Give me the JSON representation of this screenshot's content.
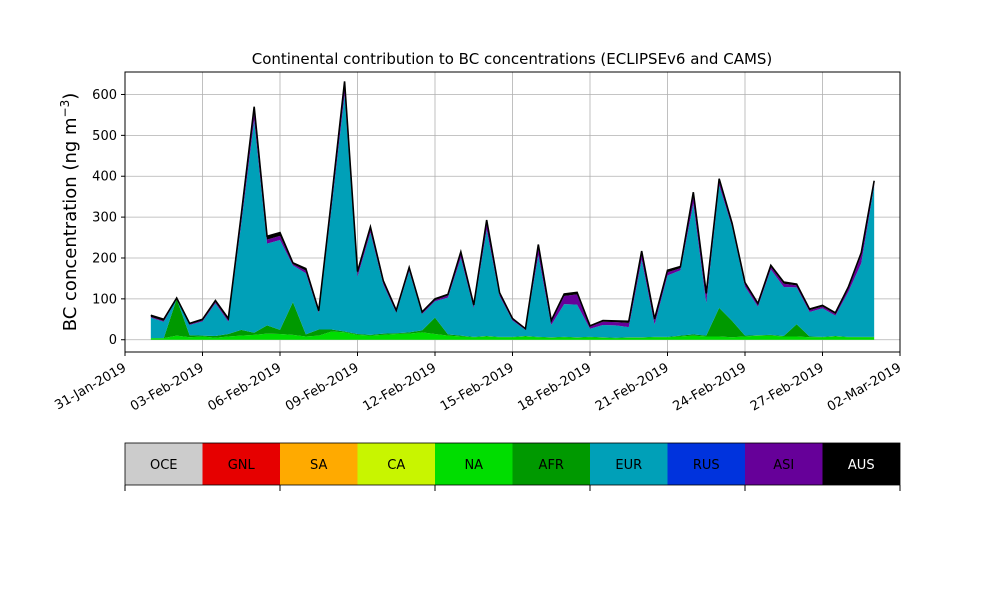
{
  "chart_data": {
    "type": "area",
    "title": "Continental contribution to BC concentrations (ECLIPSEv6 and CAMS)",
    "ylabel": "BC concentration (ng m",
    "ylabel_superscript": "−3",
    "ylabel_close": ")",
    "ylim": [
      -30,
      655
    ],
    "yticks": [
      0,
      100,
      200,
      300,
      400,
      500,
      600
    ],
    "xlim": [
      "2019-01-31",
      "2019-03-02"
    ],
    "xticks": [
      "31-Jan-2019",
      "03-Feb-2019",
      "06-Feb-2019",
      "09-Feb-2019",
      "12-Feb-2019",
      "15-Feb-2019",
      "18-Feb-2019",
      "21-Feb-2019",
      "24-Feb-2019",
      "27-Feb-2019",
      "02-Mar-2019"
    ],
    "grid": true,
    "legend_placement": "colorbar-below",
    "legend_entries": [
      {
        "label": "OCE",
        "color": "#cccccc",
        "text_color": "#000000"
      },
      {
        "label": "GNL",
        "color": "#e60000",
        "text_color": "#000000"
      },
      {
        "label": "SA",
        "color": "#ffaa00",
        "text_color": "#000000"
      },
      {
        "label": "CA",
        "color": "#c8f500",
        "text_color": "#000000"
      },
      {
        "label": "NA",
        "color": "#00dd00",
        "text_color": "#000000"
      },
      {
        "label": "AFR",
        "color": "#009900",
        "text_color": "#000000"
      },
      {
        "label": "EUR",
        "color": "#00a0b8",
        "text_color": "#000000"
      },
      {
        "label": "RUS",
        "color": "#0033dd",
        "text_color": "#000000"
      },
      {
        "label": "ASI",
        "color": "#660099",
        "text_color": "#000000"
      },
      {
        "label": "AUS",
        "color": "#000000",
        "text_color": "#ffffff"
      }
    ],
    "series_dates": [
      "2019-02-01",
      "2019-02-01T12",
      "2019-02-02",
      "2019-02-02T12",
      "2019-02-03",
      "2019-02-03T12",
      "2019-02-04",
      "2019-02-04T12",
      "2019-02-05",
      "2019-02-05T12",
      "2019-02-06",
      "2019-02-06T12",
      "2019-02-07",
      "2019-02-07T12",
      "2019-02-08",
      "2019-02-08T12",
      "2019-02-09",
      "2019-02-09T12",
      "2019-02-10",
      "2019-02-10T12",
      "2019-02-11",
      "2019-02-11T12",
      "2019-02-12",
      "2019-02-12T12",
      "2019-02-13",
      "2019-02-13T12",
      "2019-02-14",
      "2019-02-14T12",
      "2019-02-15",
      "2019-02-15T12",
      "2019-02-16",
      "2019-02-16T12",
      "2019-02-17",
      "2019-02-17T12",
      "2019-02-18",
      "2019-02-18T12",
      "2019-02-19",
      "2019-02-19T12",
      "2019-02-20",
      "2019-02-20T12",
      "2019-02-21",
      "2019-02-21T12",
      "2019-02-22",
      "2019-02-22T12",
      "2019-02-23",
      "2019-02-23T12",
      "2019-02-24",
      "2019-02-24T12",
      "2019-02-25",
      "2019-02-25T12",
      "2019-02-26",
      "2019-02-26T12",
      "2019-02-27",
      "2019-02-27T12",
      "2019-02-28",
      "2019-02-28T12",
      "2019-03-01"
    ],
    "series": [
      {
        "name": "NA",
        "values": [
          4,
          4,
          10,
          6,
          8,
          5,
          8,
          10,
          12,
          15,
          14,
          12,
          8,
          10,
          20,
          18,
          12,
          10,
          12,
          14,
          15,
          18,
          14,
          10,
          8,
          6,
          8,
          6,
          6,
          8,
          6,
          5,
          6,
          5,
          6,
          5,
          4,
          5,
          5,
          6,
          6,
          8,
          10,
          8,
          8,
          6,
          8,
          10,
          10,
          8,
          8,
          6,
          6,
          8,
          6,
          6,
          6
        ]
      },
      {
        "name": "AFR",
        "values": [
          0,
          0,
          90,
          5,
          2,
          4,
          6,
          14,
          5,
          20,
          10,
          80,
          5,
          15,
          5,
          2,
          2,
          2,
          3,
          2,
          3,
          5,
          40,
          3,
          2,
          1,
          1,
          1,
          1,
          1,
          1,
          1,
          1,
          1,
          1,
          1,
          1,
          1,
          1,
          1,
          1,
          2,
          3,
          2,
          70,
          40,
          2,
          1,
          2,
          1,
          30,
          2,
          1,
          1,
          1,
          1,
          1
        ]
      },
      {
        "name": "EUR",
        "values": [
          50,
          40,
          0,
          25,
          35,
          80,
          30,
          260,
          520,
          200,
          220,
          90,
          150,
          40,
          300,
          580,
          140,
          250,
          120,
          50,
          150,
          40,
          40,
          90,
          190,
          70,
          260,
          100,
          40,
          15,
          200,
          30,
          80,
          80,
          20,
          30,
          30,
          25,
          190,
          30,
          150,
          160,
          320,
          80,
          300,
          230,
          120,
          70,
          160,
          120,
          90,
          60,
          70,
          50,
          110,
          180,
          370
        ]
      },
      {
        "name": "ASI",
        "values": [
          2,
          2,
          1,
          2,
          2,
          3,
          4,
          12,
          18,
          10,
          10,
          3,
          6,
          3,
          14,
          20,
          8,
          8,
          5,
          3,
          5,
          3,
          3,
          5,
          10,
          5,
          18,
          5,
          3,
          2,
          20,
          8,
          20,
          25,
          5,
          8,
          8,
          10,
          15,
          10,
          8,
          5,
          20,
          18,
          10,
          5,
          6,
          5,
          6,
          8,
          5,
          4,
          4,
          4,
          8,
          20,
          8
        ]
      },
      {
        "name": "AUS",
        "values": [
          4,
          4,
          1,
          2,
          3,
          4,
          4,
          10,
          15,
          8,
          8,
          3,
          5,
          3,
          8,
          12,
          5,
          6,
          4,
          3,
          4,
          2,
          3,
          3,
          5,
          3,
          6,
          3,
          2,
          1,
          6,
          3,
          5,
          5,
          2,
          3,
          3,
          4,
          6,
          4,
          5,
          4,
          8,
          6,
          6,
          4,
          4,
          3,
          4,
          4,
          3,
          3,
          3,
          3,
          4,
          6,
          4
        ]
      }
    ]
  }
}
